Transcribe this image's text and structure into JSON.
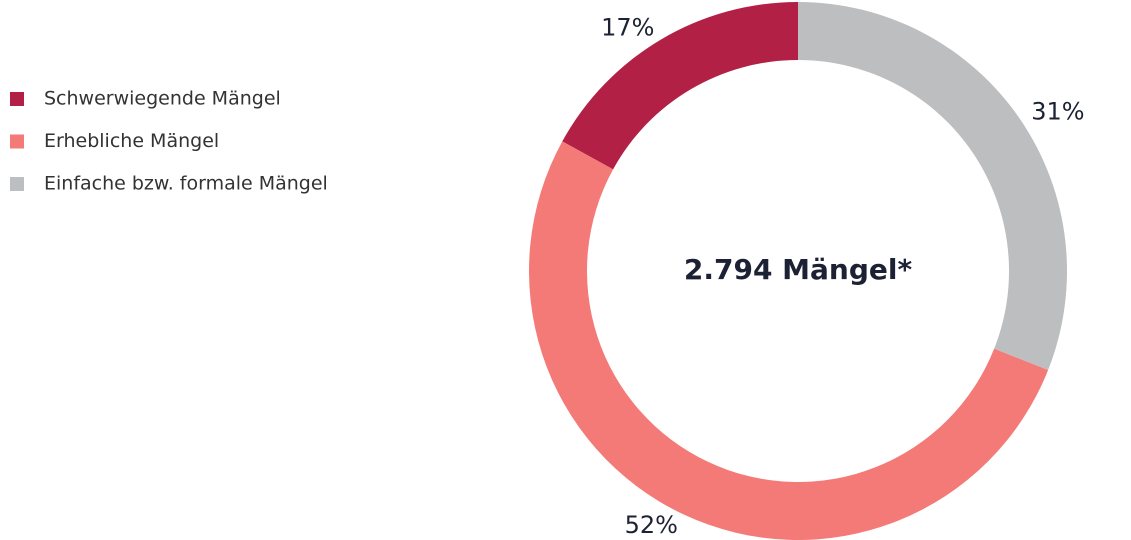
{
  "chart_data": {
    "type": "donut",
    "categories": [
      "Schwerwiegende Mängel",
      "Erhebliche Mängel",
      "Einfache bzw. formale Mängel"
    ],
    "values": [
      17,
      52,
      31
    ],
    "value_labels": [
      "17%",
      "52%",
      "31%"
    ],
    "colors": [
      "#b22145",
      "#f47a77",
      "#bcbebf"
    ],
    "center_label": "2.794 Mängel*",
    "counterclock": true,
    "legend": "top-left"
  }
}
